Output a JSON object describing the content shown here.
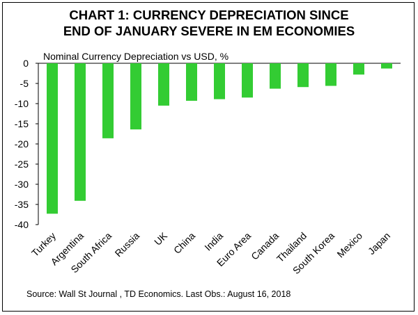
{
  "chart_data": {
    "type": "bar",
    "title_line1": "CHART 1: CURRENCY DEPRECIATION SINCE",
    "title_line2": "END OF JANUARY SEVERE IN  EM ECONOMIES",
    "subtitle": "Nominal Currency Depreciation vs USD, %",
    "categories": [
      "Turkey",
      "Argentina",
      "South Africa",
      "Russia",
      "UK",
      "China",
      "India",
      "Euro Area",
      "Canada",
      "Thailand",
      "South Korea",
      "Mexico",
      "Japan"
    ],
    "values": [
      -37.3,
      -34.1,
      -18.6,
      -16.4,
      -10.5,
      -9.3,
      -8.9,
      -8.5,
      -6.3,
      -5.9,
      -5.6,
      -2.8,
      -1.3
    ],
    "ylim": [
      -40,
      0
    ],
    "yticks": [
      0,
      -5,
      -10,
      -15,
      -20,
      -25,
      -30,
      -35,
      -40
    ],
    "bar_color": "#33cc33",
    "xlabel": "",
    "ylabel": ""
  },
  "source": "Source: Wall St Journal , TD Economics. Last Obs.: August 16, 2018"
}
